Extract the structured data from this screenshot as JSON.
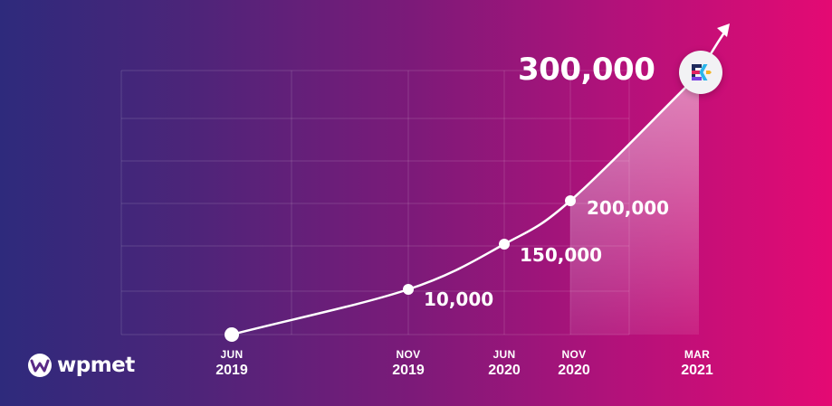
{
  "brand": {
    "name": "wpmet",
    "icon": "wpmet-logo-icon"
  },
  "product": {
    "icon": "elementskit-logo-icon"
  },
  "chart_data": {
    "type": "line",
    "title": "",
    "xlabel": "",
    "ylabel": "",
    "grid": true,
    "fill_under_last_segment": true,
    "points": [
      {
        "month": "JUN",
        "year": "2019",
        "value": 0,
        "label": ""
      },
      {
        "month": "NOV",
        "year": "2019",
        "value": 10000,
        "label": "10,000"
      },
      {
        "month": "JUN",
        "year": "2020",
        "value": 150000,
        "label": "150,000"
      },
      {
        "month": "NOV",
        "year": "2020",
        "value": 200000,
        "label": "200,000"
      },
      {
        "month": "MAR",
        "year": "2021",
        "value": 300000,
        "label": "300,000"
      }
    ],
    "ylim": [
      0,
      300000
    ]
  },
  "colors": {
    "gradient_start": "#2e2a7c",
    "gradient_end": "#e40a73",
    "line": "#ffffff"
  }
}
